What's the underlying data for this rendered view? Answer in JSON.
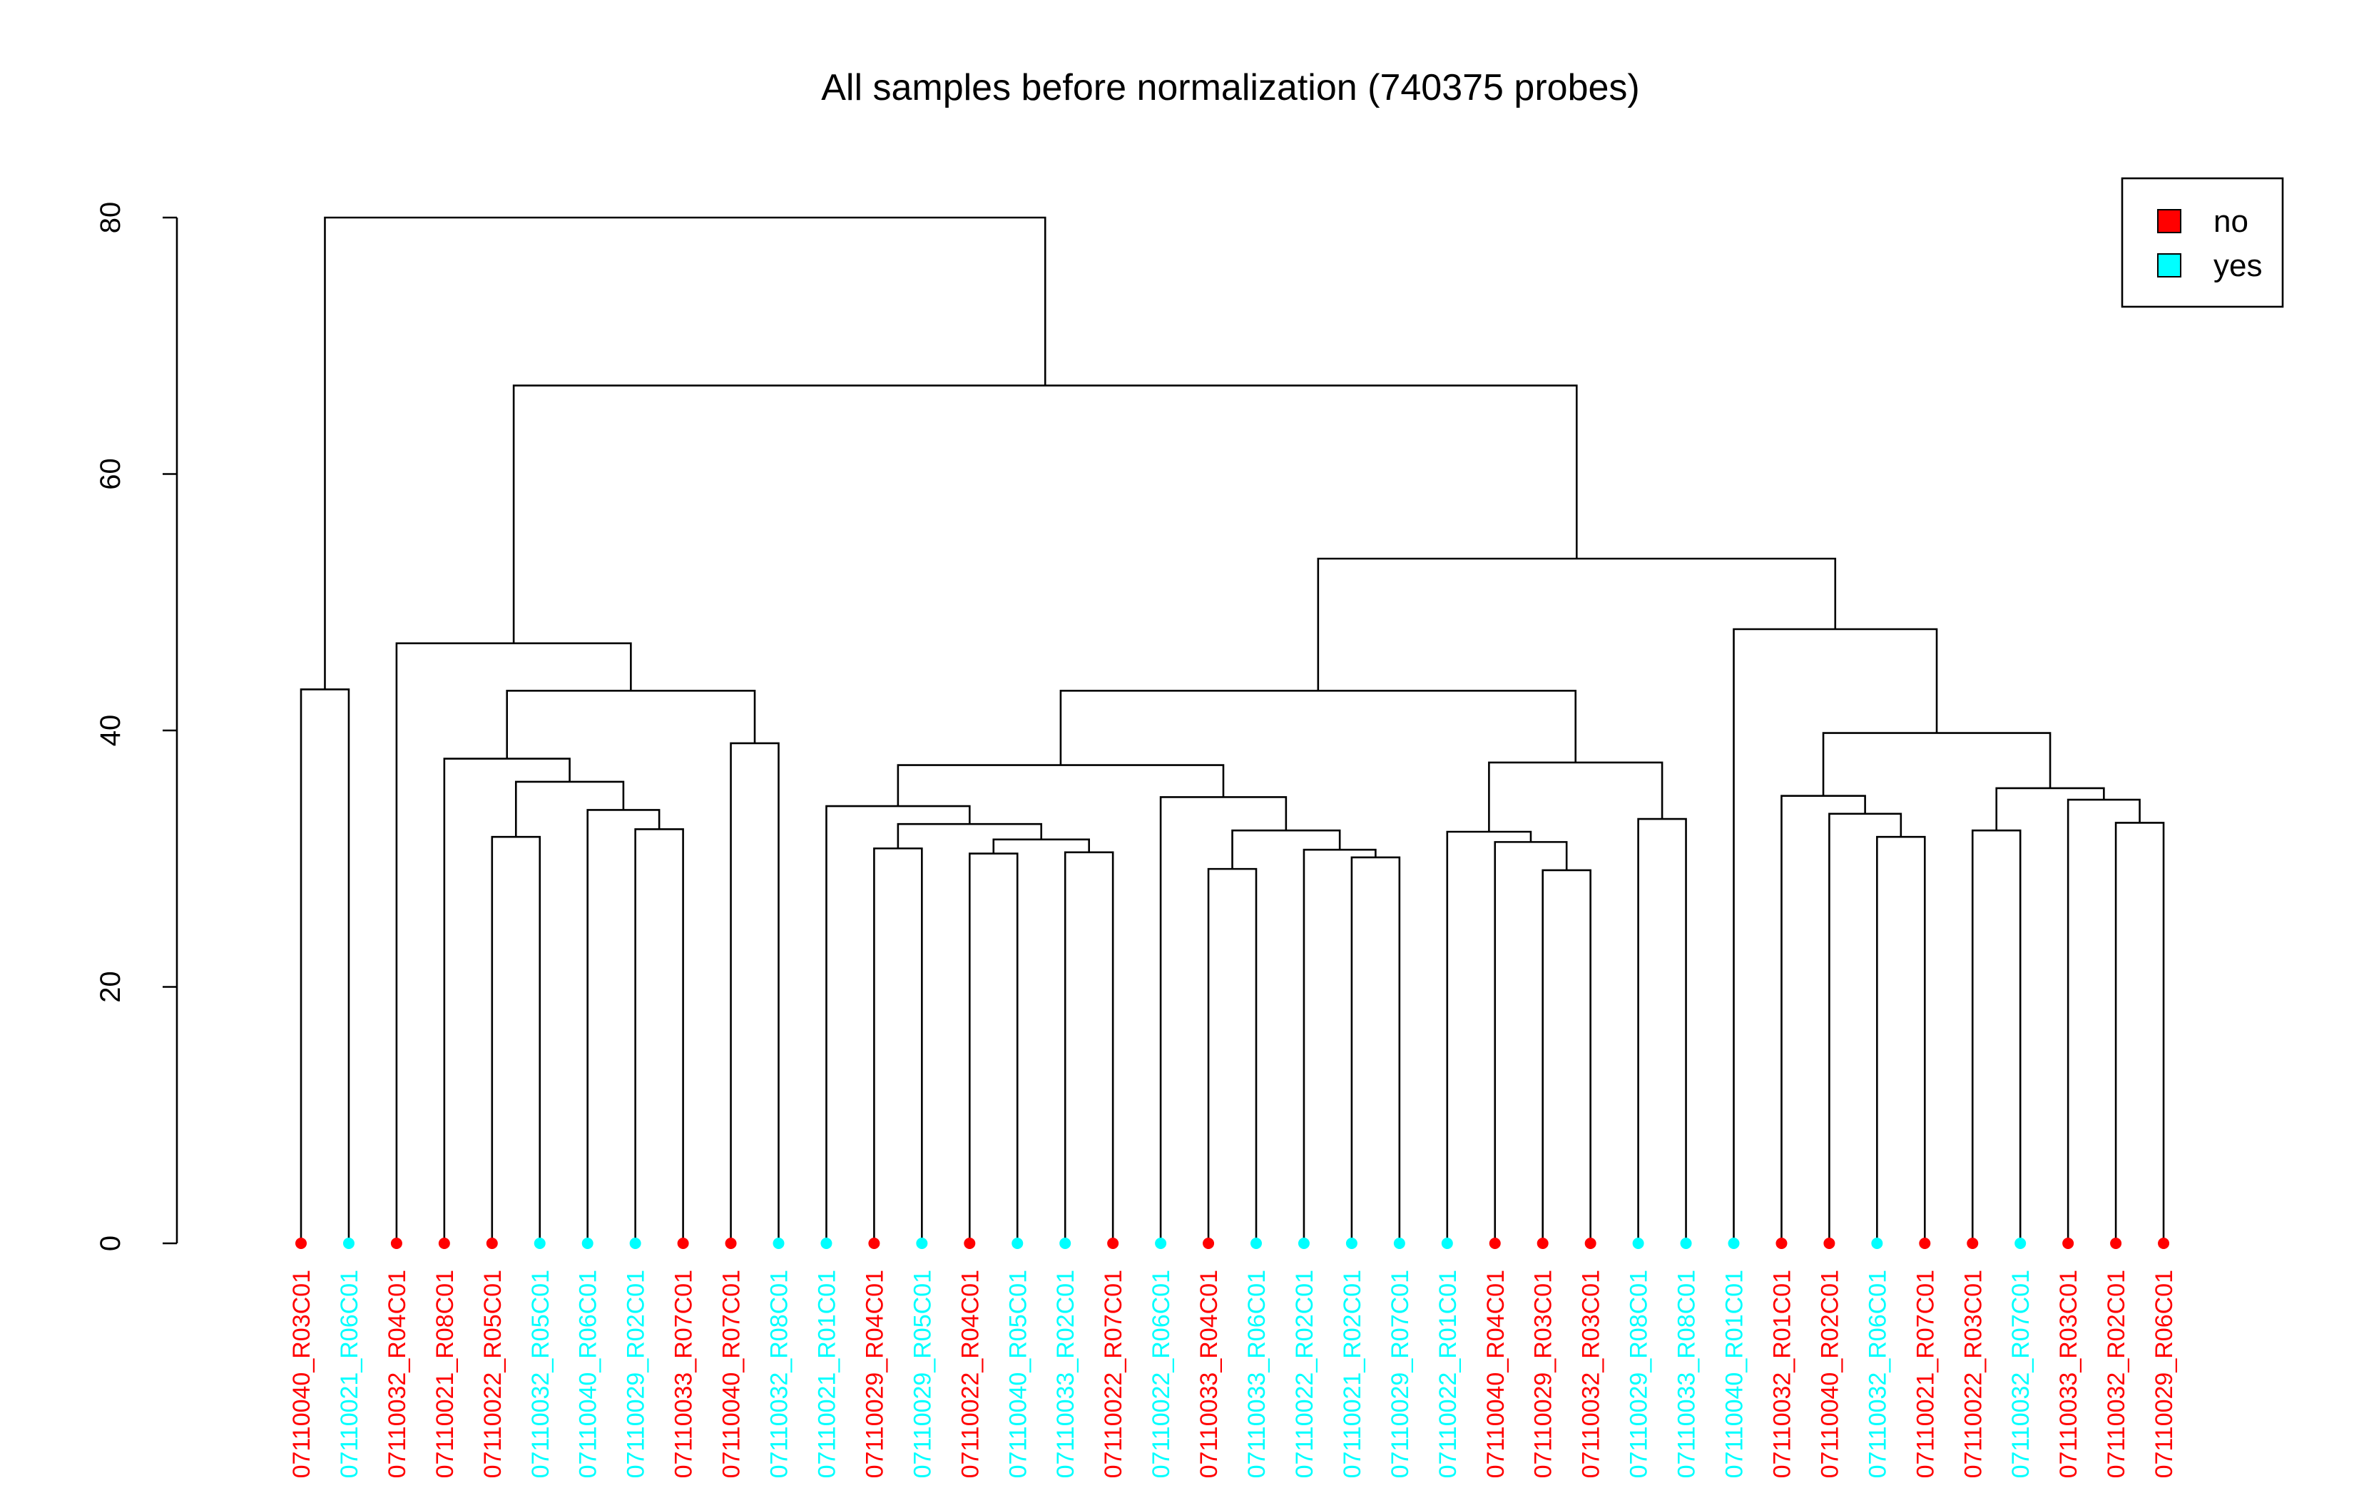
{
  "chart_data": {
    "type": "dendrogram",
    "title": "All samples before normalization (740375 probes)",
    "ylabel": "",
    "ylim": [
      0,
      80
    ],
    "yticks": [
      0,
      20,
      40,
      60,
      80
    ],
    "group_colors": {
      "no": "#ff0000",
      "yes": "#00ffff"
    },
    "legend": {
      "position": "top-right",
      "entries": [
        {
          "label": "no",
          "color": "#ff0000"
        },
        {
          "label": "yes",
          "color": "#00ffff"
        }
      ]
    },
    "leaves": [
      {
        "label": "07110040_R03C01",
        "group": "no"
      },
      {
        "label": "07110021_R06C01",
        "group": "yes"
      },
      {
        "label": "07110032_R04C01",
        "group": "no"
      },
      {
        "label": "07110021_R08C01",
        "group": "no"
      },
      {
        "label": "07110022_R05C01",
        "group": "no"
      },
      {
        "label": "07110032_R05C01",
        "group": "yes"
      },
      {
        "label": "07110040_R06C01",
        "group": "yes"
      },
      {
        "label": "07110029_R02C01",
        "group": "yes"
      },
      {
        "label": "07110033_R07C01",
        "group": "no"
      },
      {
        "label": "07110040_R07C01",
        "group": "no"
      },
      {
        "label": "07110032_R08C01",
        "group": "yes"
      },
      {
        "label": "07110021_R01C01",
        "group": "yes"
      },
      {
        "label": "07110029_R04C01",
        "group": "no"
      },
      {
        "label": "07110029_R05C01",
        "group": "yes"
      },
      {
        "label": "07110022_R04C01",
        "group": "no"
      },
      {
        "label": "07110040_R05C01",
        "group": "yes"
      },
      {
        "label": "07110033_R02C01",
        "group": "yes"
      },
      {
        "label": "07110022_R07C01",
        "group": "no"
      },
      {
        "label": "07110022_R06C01",
        "group": "yes"
      },
      {
        "label": "07110033_R04C01",
        "group": "no"
      },
      {
        "label": "07110033_R06C01",
        "group": "yes"
      },
      {
        "label": "07110022_R02C01",
        "group": "yes"
      },
      {
        "label": "07110021_R02C01",
        "group": "yes"
      },
      {
        "label": "07110029_R07C01",
        "group": "yes"
      },
      {
        "label": "07110022_R01C01",
        "group": "yes"
      },
      {
        "label": "07110040_R04C01",
        "group": "no"
      },
      {
        "label": "07110029_R03C01",
        "group": "no"
      },
      {
        "label": "07110032_R03C01",
        "group": "no"
      },
      {
        "label": "07110029_R08C01",
        "group": "yes"
      },
      {
        "label": "07110033_R08C01",
        "group": "yes"
      },
      {
        "label": "07110040_R01C01",
        "group": "yes"
      },
      {
        "label": "07110032_R01C01",
        "group": "no"
      },
      {
        "label": "07110040_R02C01",
        "group": "no"
      },
      {
        "label": "07110032_R06C01",
        "group": "yes"
      },
      {
        "label": "07110021_R07C01",
        "group": "no"
      },
      {
        "label": "07110022_R03C01",
        "group": "no"
      },
      {
        "label": "07110032_R07C01",
        "group": "yes"
      },
      {
        "label": "07110033_R03C01",
        "group": "no"
      },
      {
        "label": "07110032_R02C01",
        "group": "no"
      },
      {
        "label": "07110029_R06C01",
        "group": "no"
      }
    ],
    "merges": [
      {
        "id": "A",
        "left": 0,
        "right": 1,
        "height": 43.2
      },
      {
        "id": "B",
        "left": 4,
        "right": 5,
        "height": 31.7
      },
      {
        "id": "C",
        "left": 7,
        "right": 8,
        "height": 32.3
      },
      {
        "id": "D",
        "left": 6,
        "right": "C",
        "height": 33.8
      },
      {
        "id": "E",
        "left": "B",
        "right": "D",
        "height": 36.0
      },
      {
        "id": "F",
        "left": 3,
        "right": "E",
        "height": 37.8
      },
      {
        "id": "G",
        "left": 9,
        "right": 10,
        "height": 39.0
      },
      {
        "id": "H",
        "left": "F",
        "right": "G",
        "height": 43.1
      },
      {
        "id": "I",
        "left": 2,
        "right": "H",
        "height": 46.8
      },
      {
        "id": "J",
        "left": 12,
        "right": 13,
        "height": 30.8
      },
      {
        "id": "K",
        "left": 14,
        "right": 15,
        "height": 30.4
      },
      {
        "id": "L",
        "left": 16,
        "right": 17,
        "height": 30.5
      },
      {
        "id": "M",
        "left": "K",
        "right": "L",
        "height": 31.5
      },
      {
        "id": "N",
        "left": "J",
        "right": "M",
        "height": 32.7
      },
      {
        "id": "O",
        "left": 11,
        "right": "N",
        "height": 34.1
      },
      {
        "id": "P",
        "left": 19,
        "right": 20,
        "height": 29.2
      },
      {
        "id": "Q",
        "left": 22,
        "right": 23,
        "height": 30.1
      },
      {
        "id": "R",
        "left": 21,
        "right": "Q",
        "height": 30.7
      },
      {
        "id": "S",
        "left": "P",
        "right": "R",
        "height": 32.2
      },
      {
        "id": "T",
        "left": 18,
        "right": "S",
        "height": 34.8
      },
      {
        "id": "U",
        "left": "O",
        "right": "T",
        "height": 37.3
      },
      {
        "id": "V",
        "left": 26,
        "right": 27,
        "height": 29.1
      },
      {
        "id": "W",
        "left": 25,
        "right": "V",
        "height": 31.3
      },
      {
        "id": "X",
        "left": 24,
        "right": "W",
        "height": 32.1
      },
      {
        "id": "Y",
        "left": 28,
        "right": 29,
        "height": 33.1
      },
      {
        "id": "Z",
        "left": "X",
        "right": "Y",
        "height": 37.5
      },
      {
        "id": "AA",
        "left": "U",
        "right": "Z",
        "height": 43.1
      },
      {
        "id": "AB",
        "left": 33,
        "right": 34,
        "height": 31.7
      },
      {
        "id": "AC",
        "left": 32,
        "right": "AB",
        "height": 33.5
      },
      {
        "id": "AD",
        "left": 31,
        "right": "AC",
        "height": 34.9
      },
      {
        "id": "AE",
        "left": 35,
        "right": 36,
        "height": 32.2
      },
      {
        "id": "AF",
        "left": 38,
        "right": 39,
        "height": 32.8
      },
      {
        "id": "AG",
        "left": 37,
        "right": "AF",
        "height": 34.6
      },
      {
        "id": "AH",
        "left": "AE",
        "right": "AG",
        "height": 35.5
      },
      {
        "id": "AI",
        "left": "AD",
        "right": "AH",
        "height": 39.8
      },
      {
        "id": "AJ",
        "left": 30,
        "right": "AI",
        "height": 47.9
      },
      {
        "id": "AK",
        "left": "AA",
        "right": "AJ",
        "height": 53.4
      },
      {
        "id": "AL",
        "left": "I",
        "right": "AK",
        "height": 66.9
      },
      {
        "id": "AM",
        "left": "A",
        "right": "AL",
        "height": 80.0
      }
    ]
  }
}
